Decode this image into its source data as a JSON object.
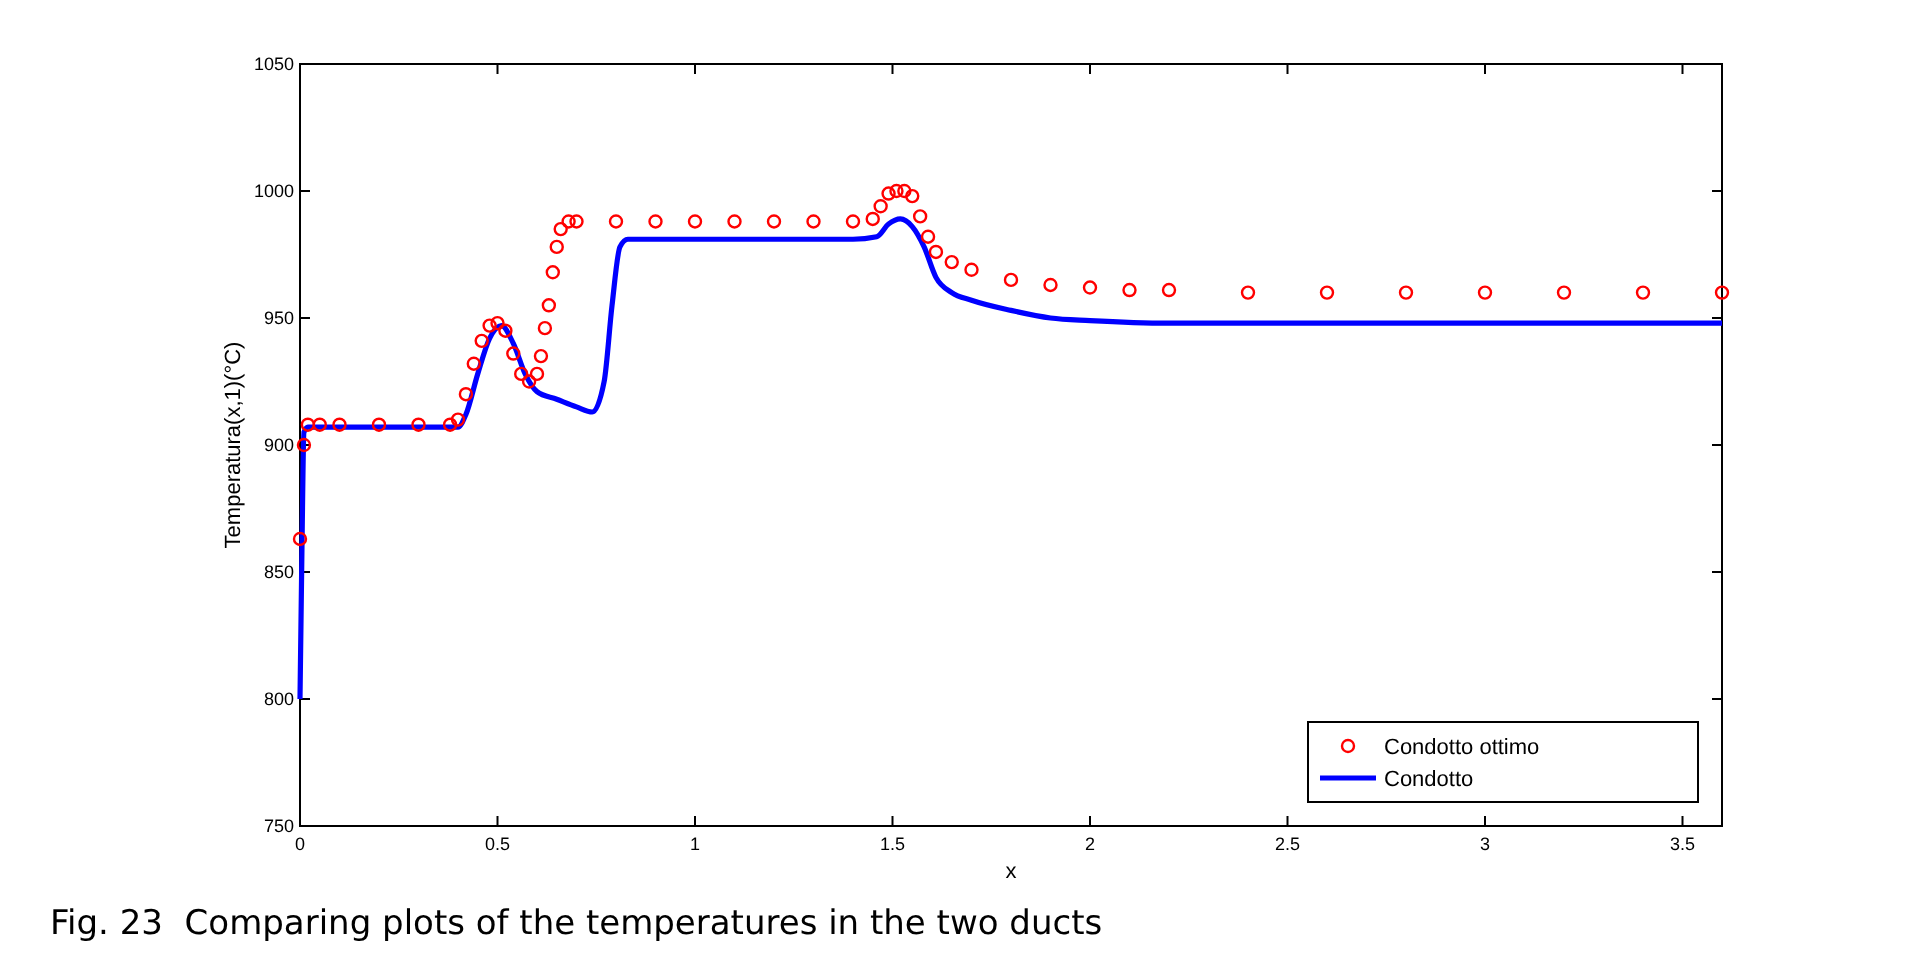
{
  "chart_data": {
    "type": "line",
    "xlabel": "x",
    "ylabel": "Temperatura(x,1)(°C)",
    "xlim": [
      0,
      3.6
    ],
    "xticks": [
      0,
      0.5,
      1,
      1.5,
      2,
      2.5,
      3,
      3.5
    ],
    "ylim": [
      750,
      1050
    ],
    "yticks": [
      750,
      800,
      850,
      900,
      950,
      1000,
      1050
    ],
    "grid": false,
    "legend": "bottom right",
    "annotations": [
      "Fig. 23  Comparing plots of the temperatures in the two ducts"
    ],
    "series": [
      {
        "name": "Condotto ottimo",
        "type": "scatter",
        "marker": "circle",
        "color": "#ff0000",
        "x": [
          0,
          0.01,
          0.02,
          0.05,
          0.1,
          0.2,
          0.3,
          0.38,
          0.4,
          0.42,
          0.44,
          0.46,
          0.48,
          0.5,
          0.52,
          0.54,
          0.56,
          0.58,
          0.6,
          0.61,
          0.62,
          0.63,
          0.64,
          0.65,
          0.66,
          0.68,
          0.7,
          0.8,
          0.9,
          1.0,
          1.1,
          1.2,
          1.3,
          1.4,
          1.45,
          1.47,
          1.49,
          1.51,
          1.53,
          1.55,
          1.57,
          1.59,
          1.61,
          1.65,
          1.7,
          1.8,
          1.9,
          2.0,
          2.1,
          2.2,
          2.4,
          2.6,
          2.8,
          3.0,
          3.2,
          3.4,
          3.6
        ],
        "values": [
          863,
          900,
          908,
          908,
          908,
          908,
          908,
          908,
          910,
          920,
          932,
          941,
          947,
          948,
          945,
          936,
          928,
          925,
          928,
          935,
          946,
          955,
          968,
          978,
          985,
          988,
          988,
          988,
          988,
          988,
          988,
          988,
          988,
          988,
          989,
          994,
          999,
          1000,
          1000,
          998,
          990,
          982,
          976,
          972,
          969,
          965,
          963,
          962,
          961,
          961,
          960,
          960,
          960,
          960,
          960,
          960,
          960
        ]
      },
      {
        "name": "Condotto",
        "line_style": "solid",
        "color": "#0000ff",
        "x": [
          0,
          0.005,
          0.01,
          0.02,
          0.1,
          0.2,
          0.3,
          0.4,
          0.42,
          0.45,
          0.48,
          0.51,
          0.54,
          0.57,
          0.6,
          0.65,
          0.7,
          0.74,
          0.77,
          0.79,
          0.81,
          0.83,
          0.9,
          1.0,
          1.2,
          1.4,
          1.46,
          1.49,
          1.52,
          1.55,
          1.58,
          1.61,
          1.65,
          1.7,
          1.8,
          1.9,
          2.0,
          2.2,
          2.5,
          3.0,
          3.6
        ],
        "values": [
          800,
          860,
          905,
          907,
          907,
          907,
          907,
          907,
          912,
          928,
          942,
          947,
          940,
          928,
          921,
          918,
          915,
          913,
          925,
          955,
          978,
          981,
          981,
          981,
          981,
          981,
          982,
          987,
          989,
          986,
          978,
          966,
          960,
          957,
          953,
          950,
          949,
          948,
          948,
          948,
          948
        ]
      }
    ]
  }
}
